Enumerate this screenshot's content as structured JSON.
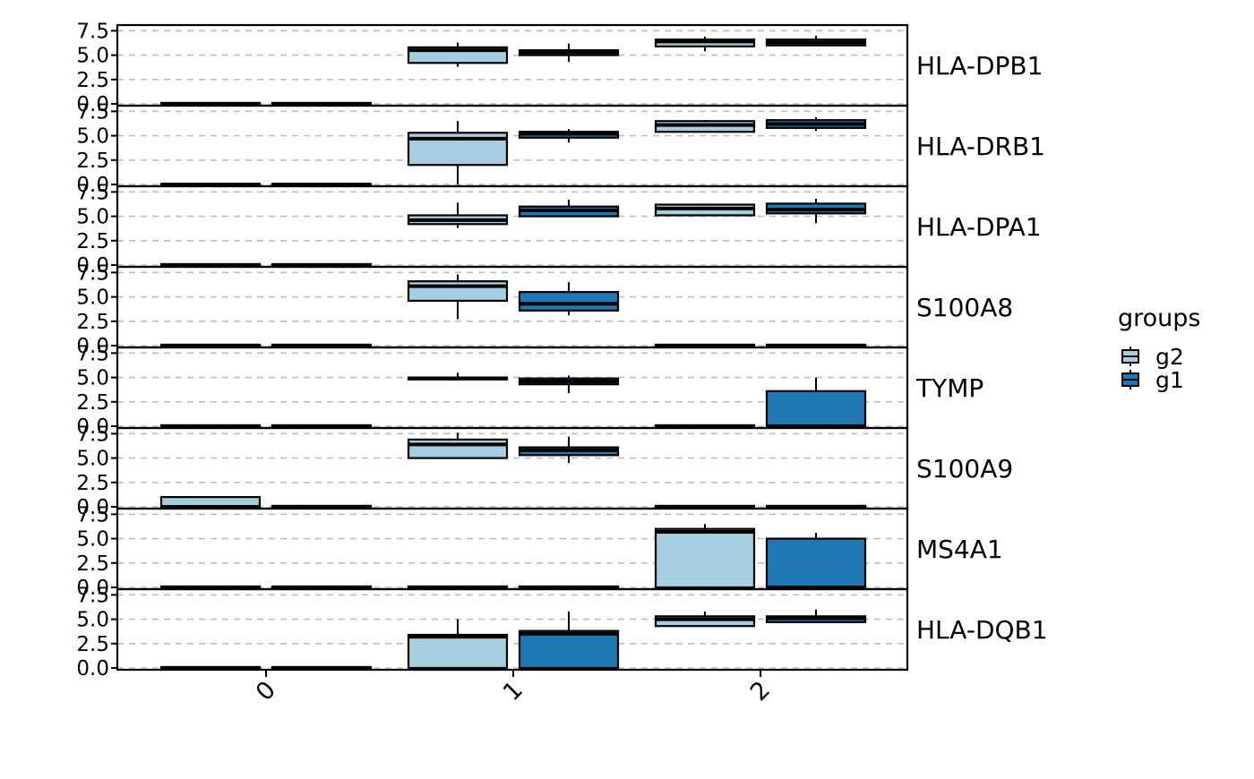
{
  "chart_data": {
    "type": "boxplot",
    "layout": "faceted-rows",
    "categories": [
      "0",
      "1",
      "2"
    ],
    "y_ticks": [
      "0.0",
      "2.5",
      "5.0",
      "7.5"
    ],
    "ylim": [
      0,
      7.9
    ],
    "grid": "horizontal-dashed",
    "legend": {
      "title": "groups",
      "position": "right",
      "entries": [
        {
          "name": "g2",
          "color": "#a6cee3"
        },
        {
          "name": "g1",
          "color": "#1f78b4"
        }
      ]
    },
    "series_order": [
      "g2",
      "g1"
    ],
    "facets": [
      {
        "label": "HLA-DPB1",
        "boxes": [
          {
            "category": "0",
            "group": "g2",
            "q1": 0,
            "median": 0,
            "q3": 0.1,
            "whisker_low": 0,
            "whisker_high": 0.1
          },
          {
            "category": "0",
            "group": "g1",
            "q1": 0,
            "median": 0,
            "q3": 0.1,
            "whisker_low": 0,
            "whisker_high": 0.1
          },
          {
            "category": "1",
            "group": "g2",
            "q1": 4.2,
            "median": 5.5,
            "q3": 5.8,
            "whisker_low": 3.8,
            "whisker_high": 6.3
          },
          {
            "category": "1",
            "group": "g1",
            "q1": 5.0,
            "median": 5.3,
            "q3": 5.5,
            "whisker_low": 4.3,
            "whisker_high": 6.2
          },
          {
            "category": "2",
            "group": "g2",
            "q1": 5.9,
            "median": 6.4,
            "q3": 6.6,
            "whisker_low": 5.4,
            "whisker_high": 6.9
          },
          {
            "category": "2",
            "group": "g1",
            "q1": 6.0,
            "median": 6.3,
            "q3": 6.6,
            "whisker_low": 6.0,
            "whisker_high": 7.0
          }
        ]
      },
      {
        "label": "HLA-DRB1",
        "boxes": [
          {
            "category": "0",
            "group": "g2",
            "q1": 0,
            "median": 0,
            "q3": 0.05,
            "whisker_low": 0,
            "whisker_high": 0.05
          },
          {
            "category": "0",
            "group": "g1",
            "q1": 0,
            "median": 0,
            "q3": 0.05,
            "whisker_low": 0,
            "whisker_high": 0.05
          },
          {
            "category": "1",
            "group": "g2",
            "q1": 2.0,
            "median": 4.7,
            "q3": 5.3,
            "whisker_low": 0,
            "whisker_high": 6.5
          },
          {
            "category": "1",
            "group": "g1",
            "q1": 4.8,
            "median": 5.2,
            "q3": 5.4,
            "whisker_low": 4.3,
            "whisker_high": 5.7
          },
          {
            "category": "2",
            "group": "g2",
            "q1": 5.4,
            "median": 6.1,
            "q3": 6.5,
            "whisker_low": 5.4,
            "whisker_high": 6.6
          },
          {
            "category": "2",
            "group": "g1",
            "q1": 5.8,
            "median": 6.2,
            "q3": 6.6,
            "whisker_low": 5.5,
            "whisker_high": 6.9
          }
        ]
      },
      {
        "label": "HLA-DPA1",
        "boxes": [
          {
            "category": "0",
            "group": "g2",
            "q1": 0,
            "median": 0,
            "q3": 0.1,
            "whisker_low": 0,
            "whisker_high": 0.1
          },
          {
            "category": "0",
            "group": "g1",
            "q1": 0,
            "median": 0,
            "q3": 0.1,
            "whisker_low": 0,
            "whisker_high": 0.1
          },
          {
            "category": "1",
            "group": "g2",
            "q1": 4.2,
            "median": 4.6,
            "q3": 5.1,
            "whisker_low": 3.8,
            "whisker_high": 6.4
          },
          {
            "category": "1",
            "group": "g1",
            "q1": 5.0,
            "median": 5.6,
            "q3": 6.0,
            "whisker_low": 5.0,
            "whisker_high": 6.7
          },
          {
            "category": "2",
            "group": "g2",
            "q1": 5.1,
            "median": 5.8,
            "q3": 6.2,
            "whisker_low": 5.1,
            "whisker_high": 6.3
          },
          {
            "category": "2",
            "group": "g1",
            "q1": 5.3,
            "median": 5.7,
            "q3": 6.3,
            "whisker_low": 4.3,
            "whisker_high": 6.8
          }
        ]
      },
      {
        "label": "S100A8",
        "boxes": [
          {
            "category": "0",
            "group": "g2",
            "q1": 0,
            "median": 0,
            "q3": 0.1,
            "whisker_low": 0,
            "whisker_high": 0.1
          },
          {
            "category": "0",
            "group": "g1",
            "q1": 0,
            "median": 0,
            "q3": 0.1,
            "whisker_low": 0,
            "whisker_high": 0.1
          },
          {
            "category": "1",
            "group": "g2",
            "q1": 4.6,
            "median": 6.1,
            "q3": 6.6,
            "whisker_low": 2.7,
            "whisker_high": 7.3
          },
          {
            "category": "1",
            "group": "g1",
            "q1": 3.6,
            "median": 4.3,
            "q3": 5.5,
            "whisker_low": 3.1,
            "whisker_high": 6.5
          },
          {
            "category": "2",
            "group": "g2",
            "q1": 0,
            "median": 0,
            "q3": 0.1,
            "whisker_low": 0,
            "whisker_high": 0.1
          },
          {
            "category": "2",
            "group": "g1",
            "q1": 0,
            "median": 0,
            "q3": 0.1,
            "whisker_low": 0,
            "whisker_high": 0.1
          }
        ]
      },
      {
        "label": "TYMP",
        "boxes": [
          {
            "category": "0",
            "group": "g2",
            "q1": 0,
            "median": 0,
            "q3": 0.1,
            "whisker_low": 0,
            "whisker_high": 0.1
          },
          {
            "category": "0",
            "group": "g1",
            "q1": 0,
            "median": 0,
            "q3": 0.1,
            "whisker_low": 0,
            "whisker_high": 0.1
          },
          {
            "category": "1",
            "group": "g2",
            "q1": 4.8,
            "median": 4.9,
            "q3": 5.0,
            "whisker_low": 4.7,
            "whisker_high": 5.5
          },
          {
            "category": "1",
            "group": "g1",
            "q1": 4.3,
            "median": 4.6,
            "q3": 4.9,
            "whisker_low": 3.4,
            "whisker_high": 5.2
          },
          {
            "category": "2",
            "group": "g2",
            "q1": 0,
            "median": 0,
            "q3": 0.1,
            "whisker_low": 0,
            "whisker_high": 0.1
          },
          {
            "category": "2",
            "group": "g1",
            "q1": 0,
            "median": 0,
            "q3": 3.6,
            "whisker_low": 0,
            "whisker_high": 5.0
          }
        ]
      },
      {
        "label": "S100A9",
        "boxes": [
          {
            "category": "0",
            "group": "g2",
            "q1": 0,
            "median": 0,
            "q3": 1.0,
            "whisker_low": 0,
            "whisker_high": 1.0
          },
          {
            "category": "0",
            "group": "g1",
            "q1": 0,
            "median": 0,
            "q3": 0.1,
            "whisker_low": 0,
            "whisker_high": 0.1
          },
          {
            "category": "1",
            "group": "g2",
            "q1": 5.0,
            "median": 6.4,
            "q3": 6.9,
            "whisker_low": 5.0,
            "whisker_high": 7.6
          },
          {
            "category": "1",
            "group": "g1",
            "q1": 5.3,
            "median": 5.8,
            "q3": 6.1,
            "whisker_low": 4.5,
            "whisker_high": 7.2
          },
          {
            "category": "2",
            "group": "g2",
            "q1": 0,
            "median": 0,
            "q3": 0.1,
            "whisker_low": 0,
            "whisker_high": 0.1
          },
          {
            "category": "2",
            "group": "g1",
            "q1": 0,
            "median": 0,
            "q3": 0.1,
            "whisker_low": 0,
            "whisker_high": 0.1
          }
        ]
      },
      {
        "label": "MS4A1",
        "boxes": [
          {
            "category": "0",
            "group": "g2",
            "q1": 0,
            "median": 0,
            "q3": 0.1,
            "whisker_low": 0,
            "whisker_high": 0.1
          },
          {
            "category": "0",
            "group": "g1",
            "q1": 0,
            "median": 0,
            "q3": 0.1,
            "whisker_low": 0,
            "whisker_high": 0.1
          },
          {
            "category": "1",
            "group": "g2",
            "q1": 0,
            "median": 0,
            "q3": 0.1,
            "whisker_low": 0,
            "whisker_high": 0.1
          },
          {
            "category": "1",
            "group": "g1",
            "q1": 0,
            "median": 0,
            "q3": 0.1,
            "whisker_low": 0,
            "whisker_high": 0.1
          },
          {
            "category": "2",
            "group": "g2",
            "q1": 0,
            "median": 5.7,
            "q3": 6.0,
            "whisker_low": 0,
            "whisker_high": 6.5
          },
          {
            "category": "2",
            "group": "g1",
            "q1": 0,
            "median": 0,
            "q3": 5.0,
            "whisker_low": 0,
            "whisker_high": 5.6
          }
        ]
      },
      {
        "label": "HLA-DQB1",
        "boxes": [
          {
            "category": "0",
            "group": "g2",
            "q1": 0,
            "median": 0,
            "q3": 0.1,
            "whisker_low": 0,
            "whisker_high": 0.1
          },
          {
            "category": "0",
            "group": "g1",
            "q1": 0,
            "median": 0,
            "q3": 0.1,
            "whisker_low": 0,
            "whisker_high": 0.1
          },
          {
            "category": "1",
            "group": "g2",
            "q1": 0,
            "median": 3.2,
            "q3": 3.4,
            "whisker_low": 0,
            "whisker_high": 5.0
          },
          {
            "category": "1",
            "group": "g1",
            "q1": 0,
            "median": 3.5,
            "q3": 3.8,
            "whisker_low": 0,
            "whisker_high": 5.8
          },
          {
            "category": "2",
            "group": "g2",
            "q1": 4.3,
            "median": 5.0,
            "q3": 5.3,
            "whisker_low": 4.3,
            "whisker_high": 5.8
          },
          {
            "category": "2",
            "group": "g1",
            "q1": 4.7,
            "median": 5.1,
            "q3": 5.3,
            "whisker_low": 4.7,
            "whisker_high": 6.0
          }
        ]
      }
    ]
  }
}
